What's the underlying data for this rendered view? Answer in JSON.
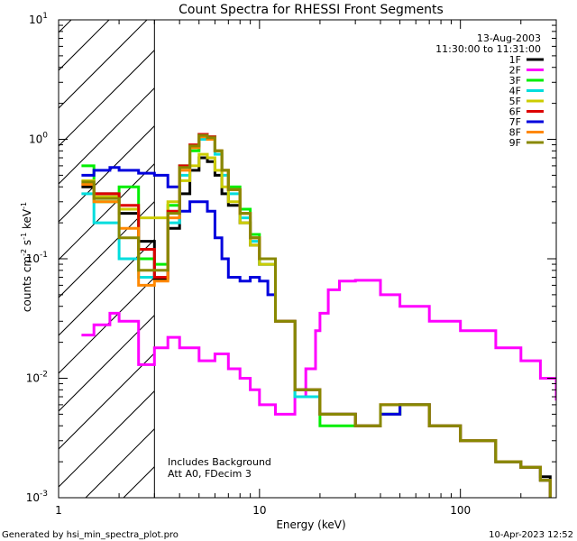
{
  "chart_data": {
    "type": "line",
    "title": "Count Spectra for RHESSI Front Segments",
    "xlabel": "Energy (keV)",
    "ylabel_parts": {
      "base": "counts cm",
      "exp1": "-2",
      "mid": " s",
      "exp2": "-1",
      "end": " keV",
      "exp3": "-1"
    },
    "x_scale": "log",
    "y_scale": "log",
    "xlim": [
      1,
      300
    ],
    "ylim": [
      0.001,
      10
    ],
    "x_ticks": [
      {
        "value": 1,
        "label": "1"
      },
      {
        "value": 10,
        "label": "10"
      },
      {
        "value": 100,
        "label": "100"
      }
    ],
    "y_ticks": [
      {
        "value": 0.001,
        "base": "10",
        "exp": "-3"
      },
      {
        "value": 0.01,
        "base": "10",
        "exp": "-2"
      },
      {
        "value": 0.1,
        "base": "10",
        "exp": "-1"
      },
      {
        "value": 1,
        "base": "10",
        "exp": "0"
      },
      {
        "value": 10,
        "base": "10",
        "exp": "1"
      }
    ],
    "date": "13-Aug-2003",
    "time_range": "11:30:00 to 11:31:00",
    "hatched_region_below_keV": 3,
    "annotations": [
      "Includes Background",
      "Att A0, FDecim 3"
    ],
    "series": [
      {
        "name": "1F",
        "color": "#000000",
        "x": [
          1.3,
          1.5,
          2.0,
          2.5,
          3.0,
          3.5,
          4.0,
          4.5,
          5.0,
          5.5,
          6.0,
          6.5,
          7,
          8,
          9,
          10,
          12,
          15,
          20,
          30,
          40,
          50,
          70,
          100,
          150,
          200,
          250,
          280
        ],
        "y": [
          0.4,
          0.35,
          0.24,
          0.14,
          0.068,
          0.18,
          0.35,
          0.55,
          0.7,
          0.65,
          0.5,
          0.35,
          0.28,
          0.2,
          0.13,
          0.09,
          0.03,
          0.008,
          0.005,
          0.004,
          0.005,
          0.006,
          0.004,
          0.003,
          0.002,
          0.0018,
          0.0015,
          0.001
        ]
      },
      {
        "name": "2F",
        "color": "#ff00ff",
        "x": [
          1.3,
          1.5,
          1.8,
          2.0,
          2.5,
          3.0,
          3.5,
          4.0,
          5.0,
          6.0,
          7.0,
          8.0,
          9.0,
          10,
          12,
          15,
          17,
          19,
          20,
          22,
          25,
          30,
          40,
          50,
          70,
          100,
          150,
          200,
          250,
          300
        ],
        "y": [
          0.023,
          0.028,
          0.035,
          0.03,
          0.013,
          0.018,
          0.022,
          0.018,
          0.014,
          0.016,
          0.012,
          0.01,
          0.008,
          0.006,
          0.005,
          0.007,
          0.012,
          0.025,
          0.035,
          0.055,
          0.065,
          0.066,
          0.05,
          0.04,
          0.03,
          0.025,
          0.018,
          0.014,
          0.01,
          0.0065
        ]
      },
      {
        "name": "3F",
        "color": "#00ee00",
        "x": [
          1.3,
          1.5,
          2.0,
          2.5,
          3.0,
          3.5,
          4.0,
          4.5,
          5.0,
          5.5,
          6.0,
          6.5,
          7,
          8,
          9,
          10,
          12,
          15,
          20,
          30,
          40,
          50,
          70,
          100,
          150,
          200,
          250,
          280
        ],
        "y": [
          0.6,
          0.3,
          0.4,
          0.1,
          0.09,
          0.28,
          0.6,
          0.8,
          1.1,
          1.05,
          0.8,
          0.55,
          0.4,
          0.26,
          0.16,
          0.1,
          0.03,
          0.007,
          0.004,
          0.004,
          0.005,
          0.006,
          0.004,
          0.003,
          0.002,
          0.0018,
          0.0014,
          0.001
        ]
      },
      {
        "name": "4F",
        "color": "#00dddd",
        "x": [
          1.3,
          1.5,
          2.0,
          2.5,
          3.0,
          3.5,
          4.0,
          4.5,
          5.0,
          5.5,
          6.0,
          6.5,
          7,
          8,
          9,
          10,
          12,
          15,
          20,
          30,
          40,
          50,
          70,
          100,
          150,
          200,
          250,
          280
        ],
        "y": [
          0.35,
          0.2,
          0.1,
          0.07,
          0.07,
          0.2,
          0.5,
          0.85,
          1.0,
          1.0,
          0.75,
          0.5,
          0.35,
          0.22,
          0.14,
          0.09,
          0.03,
          0.007,
          0.005,
          0.004,
          0.005,
          0.006,
          0.004,
          0.003,
          0.002,
          0.0018,
          0.0014,
          0.001
        ]
      },
      {
        "name": "5F",
        "color": "#cccc00",
        "x": [
          1.3,
          1.5,
          2.0,
          2.5,
          3.0,
          3.5,
          4.0,
          4.5,
          5.0,
          5.5,
          6.0,
          6.5,
          7,
          8,
          9,
          10,
          12,
          15,
          20,
          30,
          40,
          50,
          70,
          100,
          150,
          200,
          250,
          280
        ],
        "y": [
          0.45,
          0.33,
          0.26,
          0.22,
          0.22,
          0.3,
          0.45,
          0.6,
          0.75,
          0.7,
          0.55,
          0.4,
          0.3,
          0.2,
          0.13,
          0.09,
          0.03,
          0.008,
          0.005,
          0.004,
          0.005,
          0.006,
          0.004,
          0.003,
          0.002,
          0.0018,
          0.0014,
          0.001
        ]
      },
      {
        "name": "6F",
        "color": "#dd0000",
        "x": [
          1.3,
          1.5,
          2.0,
          2.5,
          3.0,
          3.5,
          4.0,
          4.5,
          5.0,
          5.5,
          6.0,
          6.5,
          7,
          8,
          9,
          10,
          12,
          15,
          20,
          30,
          40,
          50,
          70,
          100,
          150,
          200,
          250,
          280
        ],
        "y": [
          0.42,
          0.35,
          0.28,
          0.12,
          0.07,
          0.25,
          0.6,
          0.9,
          1.1,
          1.05,
          0.8,
          0.55,
          0.38,
          0.24,
          0.15,
          0.1,
          0.03,
          0.008,
          0.005,
          0.004,
          0.006,
          0.006,
          0.004,
          0.003,
          0.002,
          0.0018,
          0.0014,
          0.001
        ]
      },
      {
        "name": "7F",
        "color": "#0000dd",
        "x": [
          1.3,
          1.5,
          1.8,
          2.0,
          2.5,
          3.0,
          3.5,
          4.0,
          4.5,
          5.0,
          5.5,
          6.0,
          6.5,
          7,
          8,
          9,
          10,
          11,
          12,
          15,
          20,
          30,
          40,
          50,
          70,
          100,
          150,
          200,
          250,
          280
        ],
        "y": [
          0.5,
          0.55,
          0.58,
          0.55,
          0.52,
          0.5,
          0.4,
          0.25,
          0.3,
          0.3,
          0.25,
          0.15,
          0.1,
          0.07,
          0.065,
          0.07,
          0.065,
          0.05,
          0.03,
          0.008,
          0.005,
          0.004,
          0.005,
          0.006,
          0.004,
          0.003,
          0.002,
          0.0018,
          0.0014,
          0.001
        ]
      },
      {
        "name": "8F",
        "color": "#ff8800",
        "x": [
          1.3,
          1.5,
          2.0,
          2.5,
          3.0,
          3.5,
          4.0,
          4.5,
          5.0,
          5.5,
          6.0,
          6.5,
          7,
          8,
          9,
          10,
          12,
          15,
          20,
          30,
          40,
          50,
          70,
          100,
          150,
          200,
          250,
          280
        ],
        "y": [
          0.42,
          0.3,
          0.18,
          0.06,
          0.065,
          0.22,
          0.55,
          0.85,
          1.05,
          1.0,
          0.8,
          0.55,
          0.38,
          0.24,
          0.15,
          0.1,
          0.03,
          0.008,
          0.005,
          0.004,
          0.006,
          0.006,
          0.004,
          0.003,
          0.002,
          0.0018,
          0.0014,
          0.001
        ]
      },
      {
        "name": "9F",
        "color": "#888800",
        "x": [
          1.3,
          1.5,
          2.0,
          2.5,
          3.0,
          3.5,
          4.0,
          4.5,
          5.0,
          5.5,
          6.0,
          6.5,
          7,
          8,
          9,
          10,
          12,
          15,
          20,
          30,
          40,
          50,
          70,
          100,
          150,
          200,
          250,
          280
        ],
        "y": [
          0.44,
          0.32,
          0.15,
          0.08,
          0.08,
          0.24,
          0.58,
          0.88,
          1.08,
          1.03,
          0.8,
          0.55,
          0.38,
          0.24,
          0.15,
          0.1,
          0.03,
          0.008,
          0.005,
          0.004,
          0.006,
          0.006,
          0.004,
          0.003,
          0.002,
          0.0018,
          0.0014,
          0.001
        ]
      }
    ]
  },
  "footer": {
    "generated_by": "Generated by hsi_min_spectra_plot.pro",
    "timestamp": "10-Apr-2023 12:52"
  }
}
